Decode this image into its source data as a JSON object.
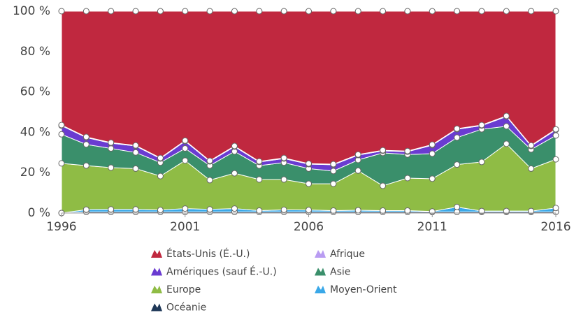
{
  "chart_data": {
    "type": "stacked-area",
    "x": [
      1996,
      1997,
      1998,
      1999,
      2000,
      2001,
      2002,
      2003,
      2004,
      2005,
      2006,
      2007,
      2008,
      2009,
      2010,
      2011,
      2012,
      2013,
      2014,
      2015,
      2016
    ],
    "xlim": [
      1996,
      2016
    ],
    "xticks": [
      1996,
      2001,
      2006,
      2011,
      2016
    ],
    "ylim": [
      0,
      100
    ],
    "yticks": [
      {
        "value": 0,
        "label": "0 %"
      },
      {
        "value": 20,
        "label": "20 %"
      },
      {
        "value": 40,
        "label": "40 %"
      },
      {
        "value": 60,
        "label": "60 %"
      },
      {
        "value": 80,
        "label": "80 %"
      },
      {
        "value": 100,
        "label": "100 %"
      }
    ],
    "series": [
      {
        "name": "États-Unis (É.-U.)",
        "color": "#c0283f",
        "values": [
          56.4,
          62.3,
          65.1,
          66.5,
          72.7,
          64.1,
          74.1,
          66.8,
          74.4,
          72.7,
          75.5,
          75.8,
          71.0,
          68.9,
          69.3,
          66.1,
          58.2,
          56.4,
          51.9,
          66.5,
          58.5
        ]
      },
      {
        "name": "Afrique",
        "color": "#b99cf2",
        "values": [
          0.3,
          0.3,
          0.3,
          0.3,
          0.3,
          0.3,
          0.3,
          0.3,
          0.3,
          0.3,
          0.3,
          0.3,
          0.3,
          0.3,
          0.3,
          0.3,
          0.3,
          0.3,
          0.3,
          0.3,
          0.3
        ]
      },
      {
        "name": "Amériques (sauf É.-U.)",
        "color": "#6a3bd1",
        "values": [
          4.3,
          3.4,
          2.6,
          3.2,
          2.0,
          3.6,
          2.1,
          2.4,
          1.8,
          2.0,
          2.2,
          3.1,
          2.4,
          1.0,
          1.4,
          4.2,
          4.1,
          1.8,
          4.8,
          1.7,
          2.8
        ]
      },
      {
        "name": "Asie",
        "color": "#3a8f6b",
        "values": [
          14.4,
          10.5,
          9.5,
          8.0,
          6.7,
          6.0,
          7.2,
          10.8,
          6.9,
          8.4,
          7.5,
          6.3,
          5.3,
          16.3,
          11.7,
          12.4,
          13.4,
          16.2,
          8.7,
          9.5,
          11.8
        ]
      },
      {
        "name": "Europe",
        "color": "#8fbc45",
        "values": [
          24.6,
          21.8,
          20.7,
          20.2,
          16.8,
          23.8,
          14.5,
          17.5,
          15.4,
          15.0,
          13.0,
          13.3,
          19.6,
          12.3,
          16.1,
          16.2,
          21.0,
          24.3,
          33.3,
          21.0,
          24.1
        ]
      },
      {
        "name": "Moyen-Orient",
        "color": "#3aa8e8",
        "values": [
          0,
          1.2,
          1.3,
          1.3,
          1.0,
          1.7,
          1.3,
          1.7,
          0.7,
          1.1,
          1.0,
          0.7,
          0.9,
          0.7,
          0.7,
          0.3,
          2.5,
          0.5,
          0.5,
          0.5,
          2.0
        ]
      },
      {
        "name": "Océanie",
        "color": "#1f3858",
        "values": [
          0,
          0.5,
          0.5,
          0.5,
          0.5,
          0.5,
          0.5,
          0.5,
          0.5,
          0.5,
          0.5,
          0.5,
          0.5,
          0.5,
          0.5,
          0.5,
          0.5,
          0.5,
          0.5,
          0.5,
          0.5
        ]
      }
    ]
  }
}
